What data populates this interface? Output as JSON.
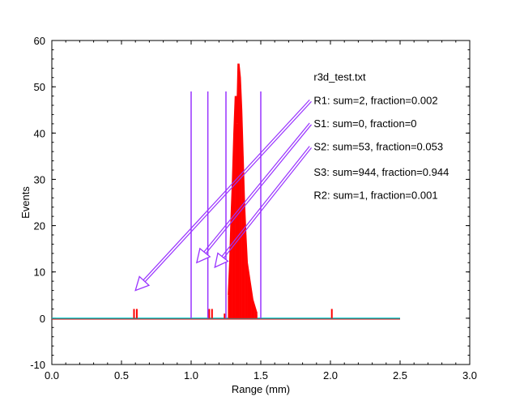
{
  "chart_data": {
    "type": "histogram",
    "xlabel": "Range (mm)",
    "ylabel": "Events",
    "xlim": [
      0.0,
      3.0
    ],
    "ylim": [
      -10,
      60
    ],
    "xticks": [
      "0.0",
      "0.5",
      "1.0",
      "1.5",
      "2.0",
      "2.5",
      "3.0"
    ],
    "yticks": [
      "-10",
      "0",
      "10",
      "20",
      "30",
      "40",
      "50",
      "60"
    ],
    "grid": false,
    "histogram": {
      "color": "#ff0000",
      "baseline_color": "#00cccc",
      "baseline_range": [
        0.0,
        2.5
      ],
      "bins": [
        {
          "x": 0.59,
          "y": 2
        },
        {
          "x": 0.61,
          "y": 2
        },
        {
          "x": 1.13,
          "y": 2
        },
        {
          "x": 1.15,
          "y": 2
        },
        {
          "x": 1.24,
          "y": 1
        },
        {
          "x": 1.27,
          "y": 5
        },
        {
          "x": 1.28,
          "y": 12
        },
        {
          "x": 1.29,
          "y": 22
        },
        {
          "x": 1.3,
          "y": 30
        },
        {
          "x": 1.31,
          "y": 40
        },
        {
          "x": 1.32,
          "y": 48
        },
        {
          "x": 1.33,
          "y": 42
        },
        {
          "x": 1.34,
          "y": 55
        },
        {
          "x": 1.35,
          "y": 52
        },
        {
          "x": 1.36,
          "y": 45
        },
        {
          "x": 1.37,
          "y": 35
        },
        {
          "x": 1.38,
          "y": 25
        },
        {
          "x": 1.39,
          "y": 18
        },
        {
          "x": 1.4,
          "y": 12
        },
        {
          "x": 1.41,
          "y": 10
        },
        {
          "x": 1.42,
          "y": 8
        },
        {
          "x": 1.43,
          "y": 6
        },
        {
          "x": 1.44,
          "y": 4
        },
        {
          "x": 1.45,
          "y": 3
        },
        {
          "x": 1.46,
          "y": 2
        },
        {
          "x": 1.47,
          "y": 1
        },
        {
          "x": 2.01,
          "y": 2
        }
      ]
    },
    "cut_lines": {
      "color": "#9933ff",
      "x": [
        1.0,
        1.12,
        1.25,
        1.5
      ],
      "y_top": 49
    },
    "annotations": {
      "color": "#9933ff",
      "title": "r3d_test.txt",
      "items": [
        {
          "text": "R1: sum=2, fraction=0.002",
          "label_at": [
            1.88,
            47
          ],
          "arrow_to": [
            0.6,
            6
          ]
        },
        {
          "text": "S1: sum=0, fraction=0",
          "label_at": [
            1.88,
            42
          ],
          "arrow_to": [
            1.04,
            12
          ]
        },
        {
          "text": "S2: sum=53, fraction=0.053",
          "label_at": [
            1.88,
            37
          ],
          "arrow_to": [
            1.17,
            11
          ]
        },
        {
          "text": "S3: sum=944, fraction=0.944",
          "label_at": [
            1.88,
            31.5
          ],
          "arrow_to": null
        },
        {
          "text": "R2: sum=1, fraction=0.001",
          "label_at": [
            1.88,
            26.5
          ],
          "arrow_to": null
        }
      ]
    }
  }
}
